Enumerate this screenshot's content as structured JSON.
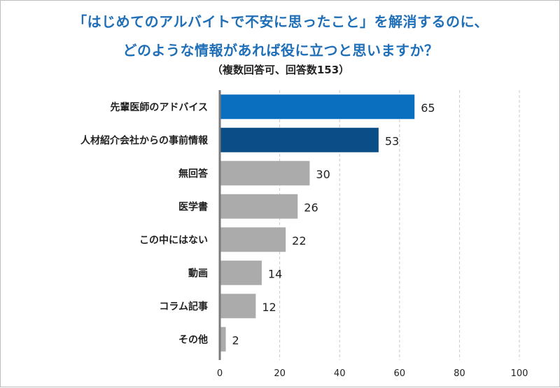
{
  "header": {
    "title_line1": "「はじめてのアルバイトで不安に思ったこと」を解消するのに、",
    "title_line2": "どのような情報があれば役に立つと思いますか？",
    "subtitle": "（複数回答可、回答数153）"
  },
  "colors": {
    "title": "#1f6fb8",
    "highlight_1": "#0a6fbf",
    "highlight_2": "#0b4d86",
    "default_bar": "#ababab",
    "grid": "#c8c8c8",
    "axis": "#7a7a7a"
  },
  "chart_data": {
    "type": "bar",
    "orientation": "horizontal",
    "categories": [
      "先輩医師のアドバイス",
      "人材紹介会社からの事前情報",
      "無回答",
      "医学書",
      "この中にはない",
      "動画",
      "コラム記事",
      "その他"
    ],
    "values": [
      65,
      53,
      30,
      26,
      22,
      14,
      12,
      2
    ],
    "bar_colors": [
      "#0a6fbf",
      "#0b4d86",
      "#ababab",
      "#ababab",
      "#ababab",
      "#ababab",
      "#ababab",
      "#ababab"
    ],
    "xlim": [
      0,
      100
    ],
    "xticks": [
      0,
      20,
      40,
      60,
      80,
      100
    ],
    "grid": "vertical dashed",
    "data_labels": true,
    "legend": "none"
  }
}
